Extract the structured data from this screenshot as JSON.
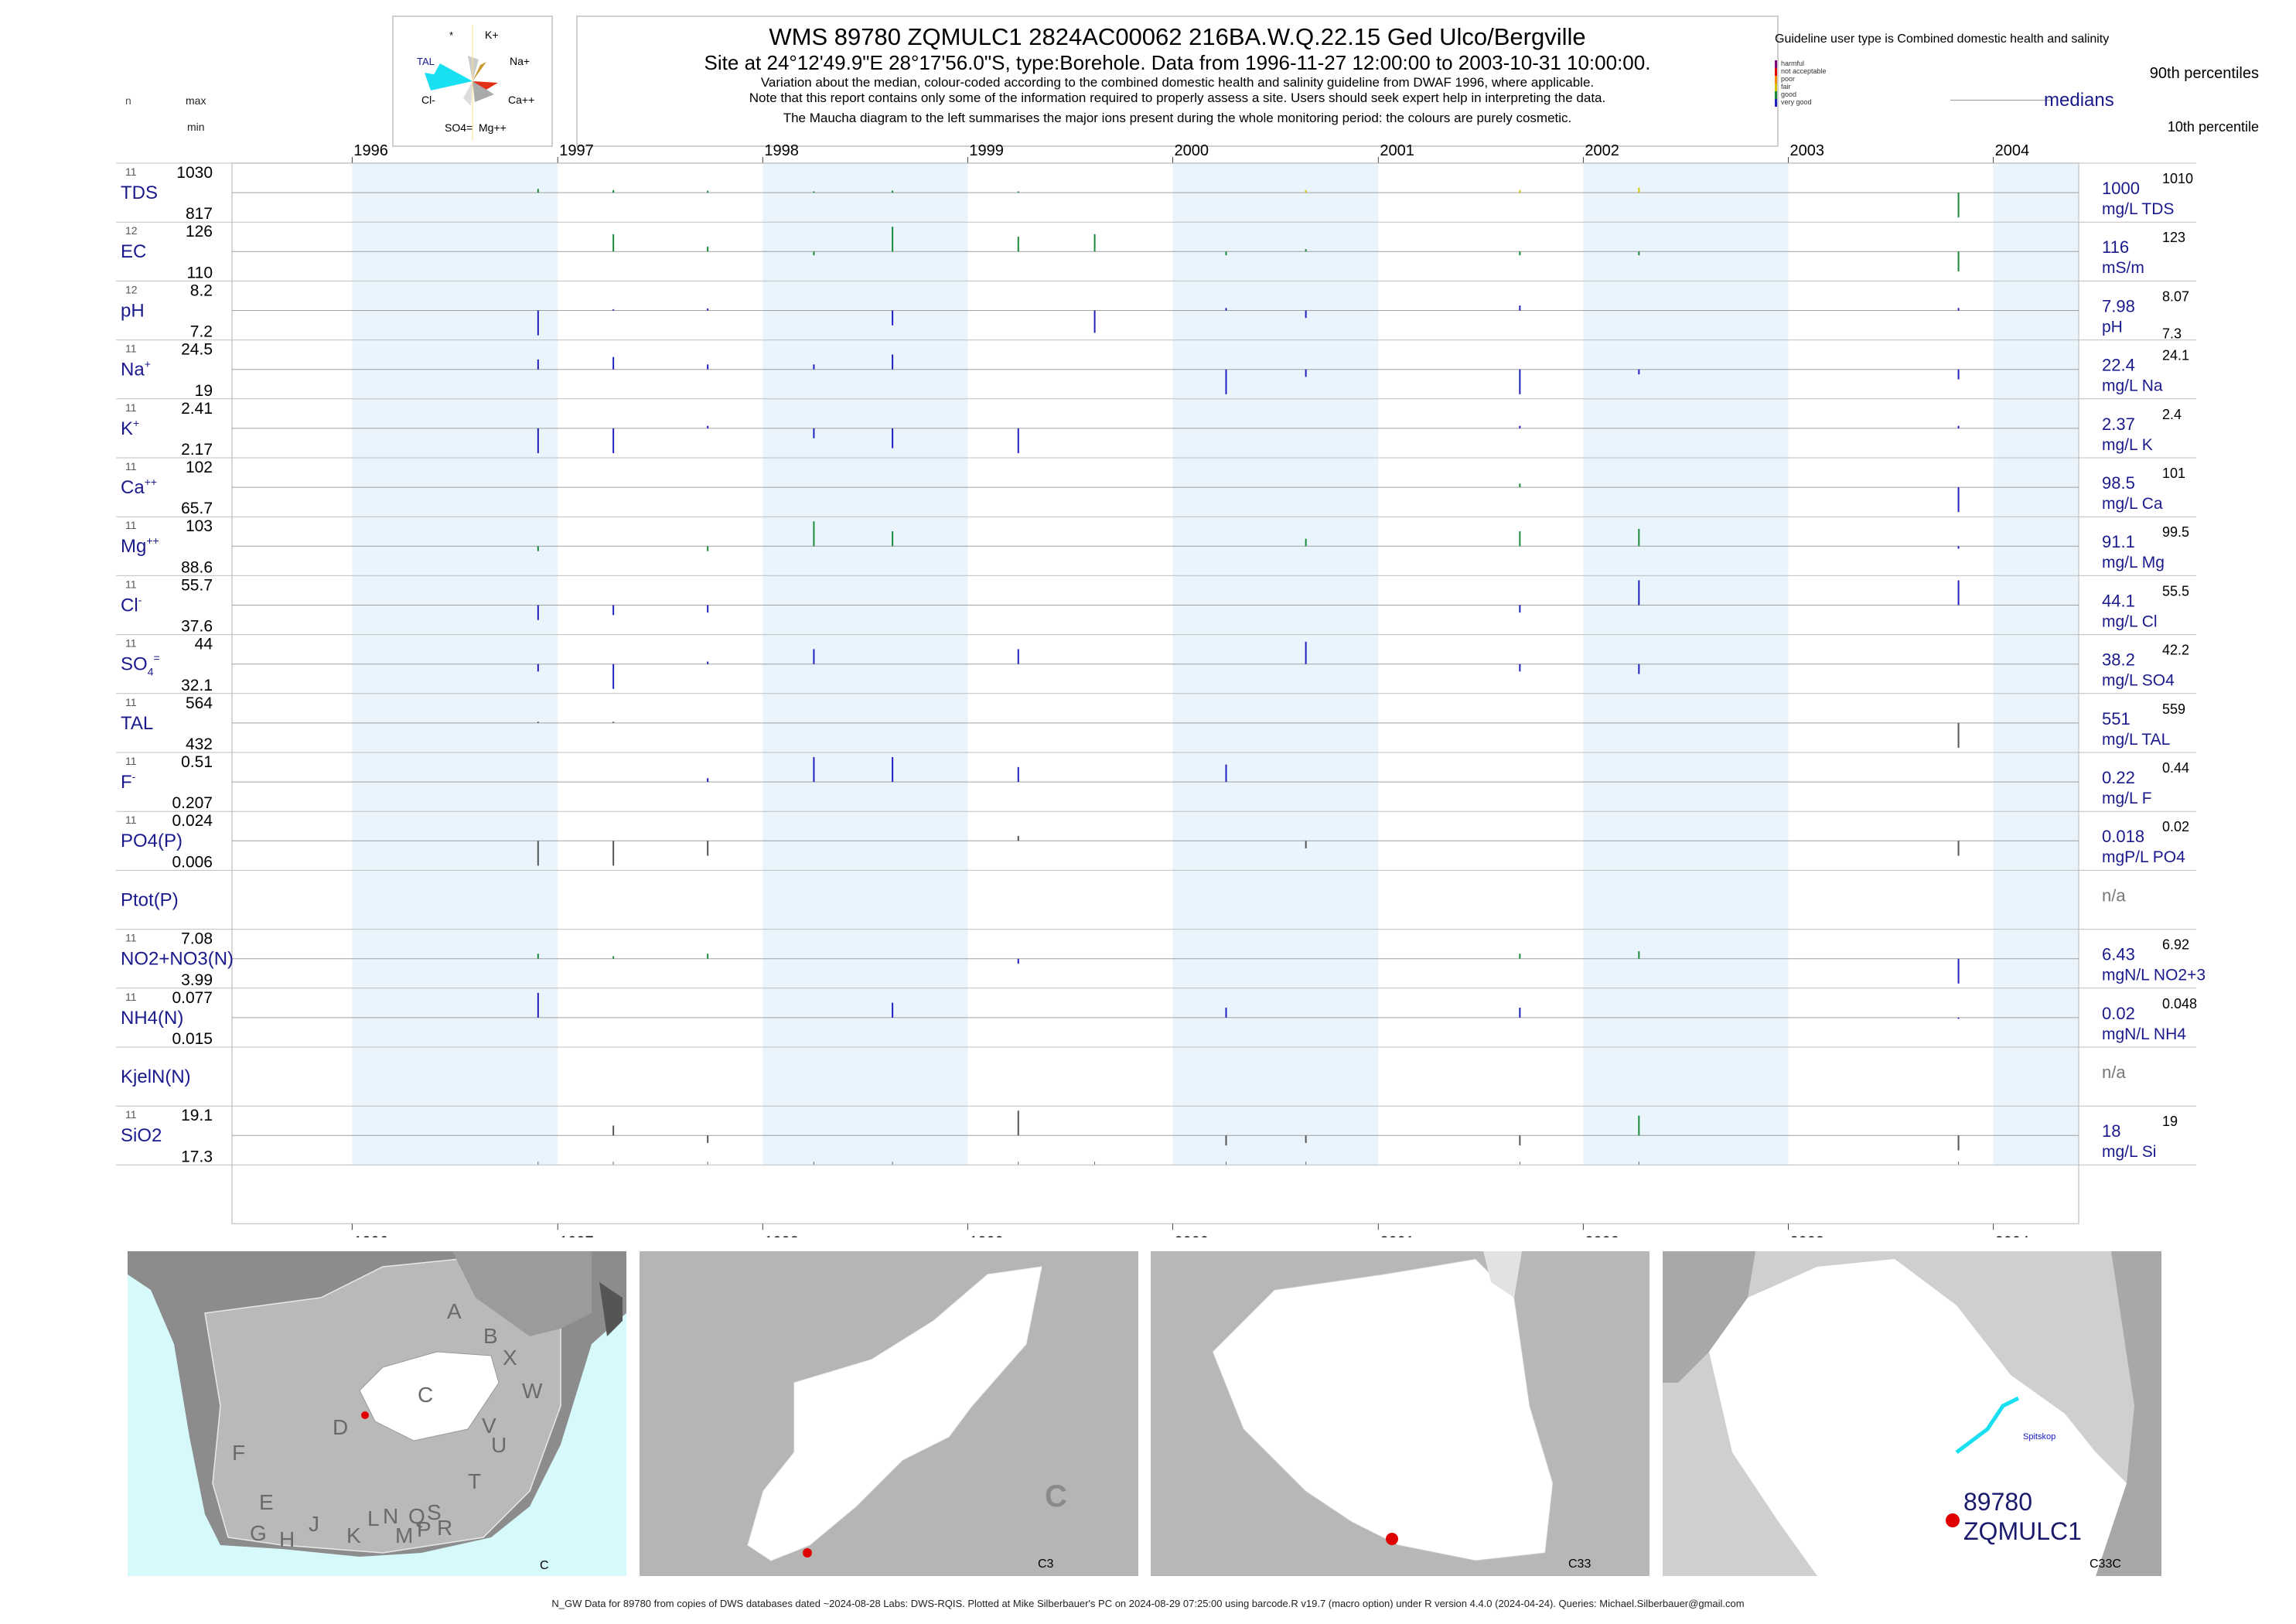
{
  "header": {
    "title": "WMS 89780 ZQMULC1 2824AC00062 216BA.W.Q.22.15 Ged Ulco/Bergville",
    "subtitle": "Site at 24°12'49.9\"E 28°17'56.0\"S, type:Borehole.  Data from 1996-11-27 12:00:00 to 2003-10-31 10:00:00.",
    "note1": "Variation about the median,  colour-coded according to the combined domestic health and salinity guideline from DWAF 1996, where applicable.",
    "note2": "Note that this report contains only some of the information required to properly assess a site. Users should seek expert help in interpreting the data.",
    "note3": "The Maucha diagram to the left summarises the major ions present during the whole monitoring period: the colours are purely cosmetic."
  },
  "maucha": {
    "labels": [
      "*",
      "K+",
      "TAL",
      "Na+",
      "Cl-",
      "Ca++",
      "SO4=",
      "Mg++"
    ]
  },
  "guideline": {
    "title": "Guideline user type is Combined domestic health and salinity",
    "levels": [
      {
        "name": "harmful",
        "color": "#800080"
      },
      {
        "name": "not acceptable",
        "color": "#e00000"
      },
      {
        "name": "poor",
        "color": "#ff8c00"
      },
      {
        "name": "fair",
        "color": "#d4c400"
      },
      {
        "name": "good",
        "color": "#1a8a3a"
      },
      {
        "name": "very good",
        "color": "#2020c0"
      }
    ],
    "p90": "90th percentiles",
    "medians": "medians",
    "p10": "10th percentile"
  },
  "left_header": {
    "n": "n",
    "max": "max",
    "min": "min"
  },
  "years": [
    "1996",
    "1997",
    "1998",
    "1999",
    "2000",
    "2001",
    "2002",
    "2003",
    "2004"
  ],
  "sample_dates": [
    "1996-11-27",
    "1997-04-10",
    "1997-09-25",
    "1998-04-02",
    "1998-08-20",
    "1999-04-01",
    "1999-08-15",
    "2000-04-05",
    "2000-08-25",
    "2001-09-10",
    "2002-04-10",
    "2003-10-31"
  ],
  "chart_data": {
    "type": "bar",
    "x_range": [
      "1995-06-01",
      "2004-06-01"
    ],
    "shaded_years": [
      "1996",
      "1998",
      "2000",
      "2002",
      "2004"
    ],
    "panels": [
      {
        "label": "TDS",
        "n": "11",
        "max": "1030",
        "min": "817",
        "median": "1000",
        "unit": "mg/L TDS",
        "p90": "1010",
        "p10": "",
        "deviations": [
          {
            "t": "1996-11-27",
            "d": 0.15,
            "c": "#1a8a3a"
          },
          {
            "t": "1997-04-10",
            "d": 0.1,
            "c": "#1a8a3a"
          },
          {
            "t": "1997-09-25",
            "d": 0.08,
            "c": "#1a8a3a"
          },
          {
            "t": "1998-04-02",
            "d": 0.05,
            "c": "#1a8a3a"
          },
          {
            "t": "1998-08-20",
            "d": 0.08,
            "c": "#1a8a3a"
          },
          {
            "t": "1999-04-01",
            "d": 0.05,
            "c": "#1a8a3a"
          },
          {
            "t": "2000-08-25",
            "d": 0.1,
            "c": "#d4c400"
          },
          {
            "t": "2001-09-10",
            "d": 0.1,
            "c": "#d4c400"
          },
          {
            "t": "2002-04-10",
            "d": 0.2,
            "c": "#d4c400"
          },
          {
            "t": "2003-10-31",
            "d": -1.0,
            "c": "#1a8a3a"
          }
        ]
      },
      {
        "label": "EC",
        "n": "12",
        "max": "126",
        "min": "110",
        "median": "116",
        "unit": "mS/m",
        "p90": "123",
        "p10": "",
        "deviations": [
          {
            "t": "1997-04-10",
            "d": 0.7,
            "c": "#1a8a3a"
          },
          {
            "t": "1997-09-25",
            "d": 0.2,
            "c": "#1a8a3a"
          },
          {
            "t": "1998-04-02",
            "d": -0.15,
            "c": "#1a8a3a"
          },
          {
            "t": "1998-08-20",
            "d": 1.0,
            "c": "#1a8a3a"
          },
          {
            "t": "1999-04-01",
            "d": 0.6,
            "c": "#1a8a3a"
          },
          {
            "t": "1999-08-15",
            "d": 0.7,
            "c": "#1a8a3a"
          },
          {
            "t": "2000-04-05",
            "d": -0.15,
            "c": "#1a8a3a"
          },
          {
            "t": "2000-08-25",
            "d": 0.1,
            "c": "#1a8a3a"
          },
          {
            "t": "2001-09-10",
            "d": -0.15,
            "c": "#1a8a3a"
          },
          {
            "t": "2002-04-10",
            "d": -0.15,
            "c": "#1a8a3a"
          },
          {
            "t": "2003-10-31",
            "d": -0.8,
            "c": "#1a8a3a"
          }
        ]
      },
      {
        "label": "pH",
        "n": "12",
        "max": "8.2",
        "min": "7.2",
        "median": "7.98",
        "unit": "pH",
        "p90": "8.07",
        "p10": "7.3",
        "deviations": [
          {
            "t": "1996-11-27",
            "d": -1.0,
            "c": "#2020c0"
          },
          {
            "t": "1997-04-10",
            "d": 0.05,
            "c": "#2020c0"
          },
          {
            "t": "1997-09-25",
            "d": 0.08,
            "c": "#2020c0"
          },
          {
            "t": "1998-08-20",
            "d": -0.6,
            "c": "#2020c0"
          },
          {
            "t": "1999-08-15",
            "d": -0.9,
            "c": "#2020c0"
          },
          {
            "t": "2000-04-05",
            "d": 0.1,
            "c": "#2020c0"
          },
          {
            "t": "2000-08-25",
            "d": -0.3,
            "c": "#2020c0"
          },
          {
            "t": "2001-09-10",
            "d": 0.2,
            "c": "#2020c0"
          },
          {
            "t": "2003-10-31",
            "d": 0.1,
            "c": "#2020c0"
          }
        ]
      },
      {
        "label": "Na+",
        "n": "11",
        "max": "24.5",
        "min": "19",
        "median": "22.4",
        "unit": "mg/L Na",
        "p90": "24.1",
        "p10": "",
        "deviations": [
          {
            "t": "1996-11-27",
            "d": 0.4,
            "c": "#2020c0"
          },
          {
            "t": "1997-04-10",
            "d": 0.5,
            "c": "#2020c0"
          },
          {
            "t": "1997-09-25",
            "d": 0.2,
            "c": "#2020c0"
          },
          {
            "t": "1998-04-02",
            "d": 0.2,
            "c": "#2020c0"
          },
          {
            "t": "1998-08-20",
            "d": 0.6,
            "c": "#2020c0"
          },
          {
            "t": "2000-04-05",
            "d": -1.0,
            "c": "#2020c0"
          },
          {
            "t": "2000-08-25",
            "d": -0.3,
            "c": "#2020c0"
          },
          {
            "t": "2001-09-10",
            "d": -1.0,
            "c": "#2020c0"
          },
          {
            "t": "2002-04-10",
            "d": -0.2,
            "c": "#2020c0"
          },
          {
            "t": "2003-10-31",
            "d": -0.4,
            "c": "#2020c0"
          }
        ]
      },
      {
        "label": "K+",
        "n": "11",
        "max": "2.41",
        "min": "2.17",
        "median": "2.37",
        "unit": "mg/L K",
        "p90": "2.4",
        "p10": "",
        "deviations": [
          {
            "t": "1996-11-27",
            "d": -1.0,
            "c": "#2020c0"
          },
          {
            "t": "1997-04-10",
            "d": -1.0,
            "c": "#2020c0"
          },
          {
            "t": "1997-09-25",
            "d": 0.1,
            "c": "#2020c0"
          },
          {
            "t": "1998-04-02",
            "d": -0.4,
            "c": "#2020c0"
          },
          {
            "t": "1998-08-20",
            "d": -0.8,
            "c": "#2020c0"
          },
          {
            "t": "1999-04-01",
            "d": -1.0,
            "c": "#2020c0"
          },
          {
            "t": "2001-09-10",
            "d": 0.1,
            "c": "#2020c0"
          },
          {
            "t": "2003-10-31",
            "d": 0.1,
            "c": "#2020c0"
          }
        ]
      },
      {
        "label": "Ca++",
        "n": "11",
        "max": "102",
        "min": "65.7",
        "median": "98.5",
        "unit": "mg/L Ca",
        "p90": "101",
        "p10": "",
        "deviations": [
          {
            "t": "2001-09-10",
            "d": 0.15,
            "c": "#1a8a3a"
          },
          {
            "t": "2003-10-31",
            "d": -1.0,
            "c": "#2020c0"
          }
        ]
      },
      {
        "label": "Mg++",
        "n": "11",
        "max": "103",
        "min": "88.6",
        "median": "91.1",
        "unit": "mg/L Mg",
        "p90": "99.5",
        "p10": "",
        "deviations": [
          {
            "t": "1996-11-27",
            "d": -0.2,
            "c": "#1a8a3a"
          },
          {
            "t": "1997-09-25",
            "d": -0.2,
            "c": "#1a8a3a"
          },
          {
            "t": "1998-04-02",
            "d": 1.0,
            "c": "#1a8a3a"
          },
          {
            "t": "1998-08-20",
            "d": 0.6,
            "c": "#1a8a3a"
          },
          {
            "t": "2000-08-25",
            "d": 0.3,
            "c": "#1a8a3a"
          },
          {
            "t": "2001-09-10",
            "d": 0.6,
            "c": "#1a8a3a"
          },
          {
            "t": "2002-04-10",
            "d": 0.7,
            "c": "#1a8a3a"
          },
          {
            "t": "2003-10-31",
            "d": -0.1,
            "c": "#2020c0"
          }
        ]
      },
      {
        "label": "Cl-",
        "n": "11",
        "max": "55.7",
        "min": "37.6",
        "median": "44.1",
        "unit": "mg/L Cl",
        "p90": "55.5",
        "p10": "",
        "deviations": [
          {
            "t": "1996-11-27",
            "d": -0.6,
            "c": "#2020c0"
          },
          {
            "t": "1997-04-10",
            "d": -0.4,
            "c": "#2020c0"
          },
          {
            "t": "1997-09-25",
            "d": -0.3,
            "c": "#2020c0"
          },
          {
            "t": "2001-09-10",
            "d": -0.3,
            "c": "#2020c0"
          },
          {
            "t": "2002-04-10",
            "d": 1.0,
            "c": "#2020c0"
          },
          {
            "t": "2003-10-31",
            "d": 1.0,
            "c": "#2020c0"
          }
        ]
      },
      {
        "label": "SO4=",
        "n": "11",
        "max": "44",
        "min": "32.1",
        "median": "38.2",
        "unit": "mg/L SO4",
        "p90": "42.2",
        "p10": "",
        "deviations": [
          {
            "t": "1996-11-27",
            "d": -0.3,
            "c": "#2020c0"
          },
          {
            "t": "1997-04-10",
            "d": -1.0,
            "c": "#2020c0"
          },
          {
            "t": "1997-09-25",
            "d": 0.1,
            "c": "#2020c0"
          },
          {
            "t": "1998-04-02",
            "d": 0.6,
            "c": "#2020c0"
          },
          {
            "t": "1999-04-01",
            "d": 0.6,
            "c": "#2020c0"
          },
          {
            "t": "2000-08-25",
            "d": 0.9,
            "c": "#2020c0"
          },
          {
            "t": "2001-09-10",
            "d": -0.3,
            "c": "#2020c0"
          },
          {
            "t": "2002-04-10",
            "d": -0.4,
            "c": "#2020c0"
          }
        ]
      },
      {
        "label": "TAL",
        "n": "11",
        "max": "564",
        "min": "432",
        "median": "551",
        "unit": "mg/L TAL",
        "p90": "559",
        "p10": "",
        "deviations": [
          {
            "t": "1996-11-27",
            "d": 0.05,
            "c": "#555555"
          },
          {
            "t": "1997-04-10",
            "d": 0.05,
            "c": "#555555"
          },
          {
            "t": "2003-10-31",
            "d": -1.0,
            "c": "#555555"
          }
        ]
      },
      {
        "label": "F-",
        "n": "11",
        "max": "0.51",
        "min": "0.207",
        "median": "0.22",
        "unit": "mg/L F",
        "p90": "0.44",
        "p10": "",
        "deviations": [
          {
            "t": "1997-09-25",
            "d": 0.15,
            "c": "#2020c0"
          },
          {
            "t": "1998-04-02",
            "d": 1.0,
            "c": "#2020c0"
          },
          {
            "t": "1998-08-20",
            "d": 1.0,
            "c": "#2020c0"
          },
          {
            "t": "1999-04-01",
            "d": 0.6,
            "c": "#2020c0"
          },
          {
            "t": "2000-04-05",
            "d": 0.7,
            "c": "#2020c0"
          }
        ]
      },
      {
        "label": "PO4(P)",
        "n": "11",
        "max": "0.024",
        "min": "0.006",
        "median": "0.018",
        "unit": "mgP/L PO4",
        "p90": "0.02",
        "p10": "",
        "deviations": [
          {
            "t": "1996-11-27",
            "d": -1.0,
            "c": "#555555"
          },
          {
            "t": "1997-04-10",
            "d": -1.0,
            "c": "#555555"
          },
          {
            "t": "1997-09-25",
            "d": -0.6,
            "c": "#555555"
          },
          {
            "t": "1999-04-01",
            "d": 0.2,
            "c": "#555555"
          },
          {
            "t": "2000-08-25",
            "d": -0.3,
            "c": "#555555"
          },
          {
            "t": "2003-10-31",
            "d": -0.6,
            "c": "#555555"
          }
        ]
      },
      {
        "label": "Ptot(P)",
        "n": "",
        "max": "",
        "min": "",
        "median": "n/a",
        "unit": "",
        "p90": "",
        "p10": "",
        "deviations": []
      },
      {
        "label": "NO2+NO3(N)",
        "n": "11",
        "max": "7.08",
        "min": "3.99",
        "median": "6.43",
        "unit": "mgN/L NO2+3",
        "p90": "6.92",
        "p10": "",
        "deviations": [
          {
            "t": "1996-11-27",
            "d": 0.2,
            "c": "#1a8a3a"
          },
          {
            "t": "1997-04-10",
            "d": 0.1,
            "c": "#1a8a3a"
          },
          {
            "t": "1997-09-25",
            "d": 0.2,
            "c": "#1a8a3a"
          },
          {
            "t": "1999-04-01",
            "d": -0.2,
            "c": "#2020c0"
          },
          {
            "t": "2001-09-10",
            "d": 0.2,
            "c": "#1a8a3a"
          },
          {
            "t": "2002-04-10",
            "d": 0.3,
            "c": "#1a8a3a"
          },
          {
            "t": "2003-10-31",
            "d": -1.0,
            "c": "#2020c0"
          }
        ]
      },
      {
        "label": "NH4(N)",
        "n": "11",
        "max": "0.077",
        "min": "0.015",
        "median": "0.02",
        "unit": "mgN/L NH4",
        "p90": "0.048",
        "p10": "",
        "deviations": [
          {
            "t": "1996-11-27",
            "d": 1.0,
            "c": "#2020c0"
          },
          {
            "t": "1998-08-20",
            "d": 0.6,
            "c": "#2020c0"
          },
          {
            "t": "2000-04-05",
            "d": 0.4,
            "c": "#2020c0"
          },
          {
            "t": "2001-09-10",
            "d": 0.4,
            "c": "#2020c0"
          },
          {
            "t": "2003-10-31",
            "d": -0.05,
            "c": "#2020c0"
          }
        ]
      },
      {
        "label": "KjelN(N)",
        "n": "",
        "max": "",
        "min": "",
        "median": "n/a",
        "unit": "",
        "p90": "",
        "p10": "",
        "deviations": []
      },
      {
        "label": "SiO2",
        "n": "11",
        "max": "19.1",
        "min": "17.3",
        "median": "18",
        "unit": "mg/L Si",
        "p90": "19",
        "p10": "",
        "deviations": [
          {
            "t": "1997-04-10",
            "d": 0.4,
            "c": "#555555"
          },
          {
            "t": "1997-09-25",
            "d": -0.3,
            "c": "#555555"
          },
          {
            "t": "1999-04-01",
            "d": 1.0,
            "c": "#555555"
          },
          {
            "t": "2000-04-05",
            "d": -0.4,
            "c": "#555555"
          },
          {
            "t": "2000-08-25",
            "d": -0.3,
            "c": "#555555"
          },
          {
            "t": "2001-09-10",
            "d": -0.4,
            "c": "#555555"
          },
          {
            "t": "2002-04-10",
            "d": 0.8,
            "c": "#1a8a3a"
          },
          {
            "t": "2003-10-31",
            "d": -0.6,
            "c": "#555555"
          }
        ]
      }
    ]
  },
  "maps": {
    "m1_letters": [
      "A",
      "B",
      "X",
      "W",
      "C",
      "D",
      "V",
      "U",
      "T",
      "F",
      "E",
      "G",
      "H",
      "J",
      "K",
      "L",
      "N",
      "M",
      "Q",
      "P",
      "S",
      "R"
    ],
    "m1_caption": "C",
    "m2_caption": "C3",
    "m2_letter": "C",
    "m3_caption": "C33",
    "m4_caption": "C33C",
    "m4_place": "Spitskop",
    "m4_site1": "89780",
    "m4_site2": "ZQMULC1"
  },
  "footer": "N_GW Data for 89780 from copies of DWS databases dated ~2024-08-28 Labs: DWS-RQIS. Plotted at Mike Silberbauer's PC on 2024-08-29 07:25:00 using barcode.R v19.7 (macro option) under R version 4.4.0 (2024-04-24). Queries: Michael.Silberbauer@gmail.com"
}
